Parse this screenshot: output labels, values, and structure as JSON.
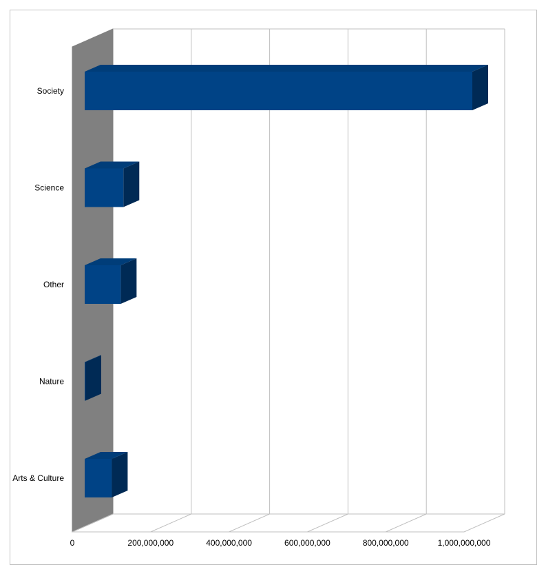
{
  "chart_data": {
    "type": "bar",
    "orientation": "horizontal",
    "style": "3d",
    "categories": [
      "Society",
      "Science",
      "Other",
      "Nature",
      "Arts & Culture"
    ],
    "values": [
      1000000000,
      100000000,
      93000000,
      1000000,
      70000000
    ],
    "x_ticks": [
      "0",
      "200,000,000",
      "400,000,000",
      "600,000,000",
      "800,000,000",
      "1,000,000,000"
    ],
    "xlim": [
      0,
      1000000000
    ],
    "xlabel": "",
    "ylabel": "",
    "title": "",
    "grid": true,
    "legend": "none",
    "colors": {
      "bar_front": "#004386",
      "bar_top": "#003D79",
      "bar_side": "#002A55",
      "side_wall": "#808080",
      "grid": "#BFBFBF",
      "frame": "#C0C0C0"
    }
  }
}
